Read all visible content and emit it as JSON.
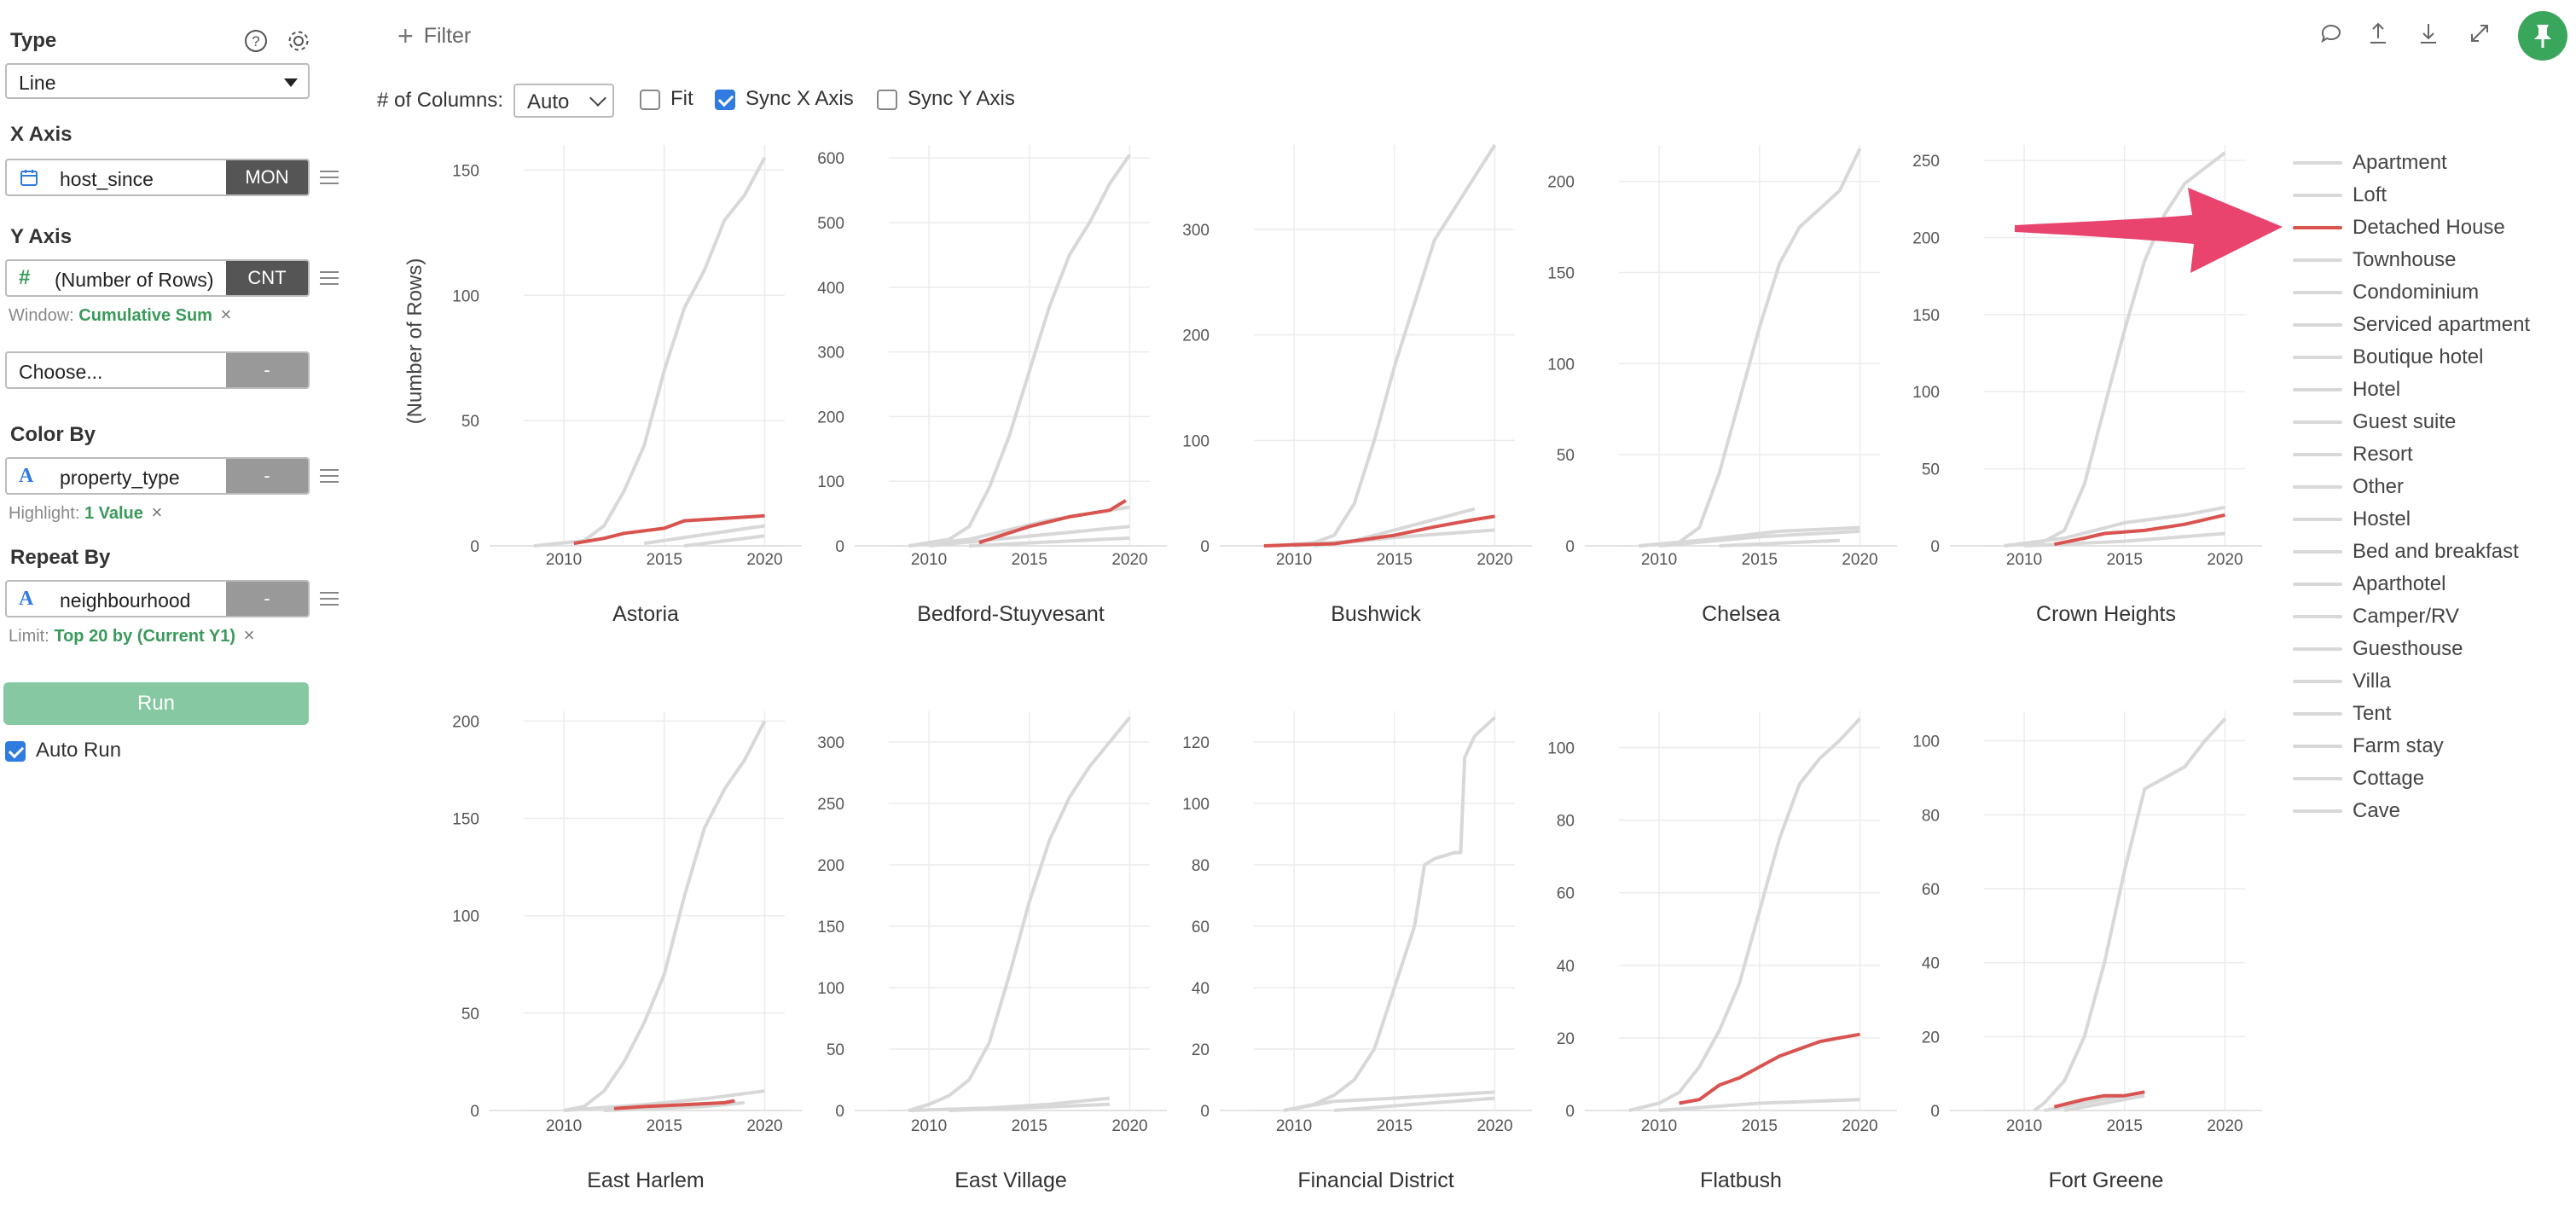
{
  "left_panel": {
    "type": {
      "title": "Type",
      "value": "Line"
    },
    "x_axis": {
      "title": "X Axis",
      "field": "host_since",
      "agg": "MON"
    },
    "y_axis": {
      "title": "Y Axis",
      "field": "(Number of Rows)",
      "agg": "CNT",
      "window_label": "Window:",
      "window_value": "Cumulative Sum"
    },
    "extra": {
      "placeholder": "Choose...",
      "agg": "-"
    },
    "color_by": {
      "title": "Color By",
      "field": "property_type",
      "agg": "-",
      "highlight_label": "Highlight:",
      "highlight_value": "1 Value"
    },
    "repeat_by": {
      "title": "Repeat By",
      "field": "neighbourhood",
      "agg": "-",
      "limit_label": "Limit:",
      "limit_value": "Top 20 by (Current Y1)"
    },
    "run_label": "Run",
    "auto_run_label": "Auto Run",
    "icons": [
      "help-icon",
      "gear-icon",
      "calendar-icon",
      "hash-icon",
      "text-type-icon",
      "menu-icon"
    ]
  },
  "toolbar": {
    "filter_label": "Filter",
    "columns_label": "# of Columns:",
    "columns_value": "Auto",
    "fit_label": "Fit",
    "fit_checked": false,
    "sync_x_label": "Sync X Axis",
    "sync_x_checked": true,
    "sync_y_label": "Sync Y Axis",
    "sync_y_checked": false,
    "icons": [
      "comment-icon",
      "upload-icon",
      "download-icon",
      "expand-icon",
      "pin-icon"
    ]
  },
  "colors": {
    "highlight": "#d9534f",
    "other": "#d8d8d8",
    "accent": "#3aa65c",
    "run": "#85c8a2",
    "arrow": "#e8446e"
  },
  "legend": {
    "items": [
      "Apartment",
      "Loft",
      "Detached House",
      "Townhouse",
      "Condominium",
      "Serviced apartment",
      "Boutique hotel",
      "Hotel",
      "Guest suite",
      "Resort",
      "Other",
      "Hostel",
      "Bed and breakfast",
      "Aparthotel",
      "Camper/RV",
      "Guesthouse",
      "Villa",
      "Tent",
      "Farm stay",
      "Cottage",
      "Cave"
    ],
    "highlighted": "Detached House"
  },
  "chart_data": {
    "type": "line",
    "y_axis_label": "(Number of Rows)",
    "x_ticks": [
      "2010",
      "2015",
      "2020"
    ],
    "panels": [
      {
        "title": "Astoria",
        "y_ticks": [
          0,
          50,
          100,
          150
        ],
        "ymax": 160,
        "apartment": [
          [
            2008.5,
            0
          ],
          [
            2011,
            2
          ],
          [
            2012,
            8
          ],
          [
            2013,
            22
          ],
          [
            2014,
            40
          ],
          [
            2015,
            70
          ],
          [
            2016,
            95
          ],
          [
            2017,
            110
          ],
          [
            2018,
            130
          ],
          [
            2019,
            140
          ],
          [
            2020,
            155
          ]
        ],
        "detached": [
          [
            2010.5,
            1
          ],
          [
            2012,
            3
          ],
          [
            2013,
            5
          ],
          [
            2015,
            7
          ],
          [
            2016,
            10
          ],
          [
            2018,
            11
          ],
          [
            2020,
            12
          ]
        ],
        "others": [
          [
            [
              2014,
              1
            ],
            [
              2020,
              8
            ]
          ],
          [
            [
              2016,
              0
            ],
            [
              2020,
              4
            ]
          ]
        ]
      },
      {
        "title": "Bedford-Stuyvesant",
        "y_ticks": [
          0,
          100,
          200,
          300,
          400,
          500,
          600
        ],
        "ymax": 620,
        "apartment": [
          [
            2009,
            0
          ],
          [
            2011,
            10
          ],
          [
            2012,
            30
          ],
          [
            2013,
            90
          ],
          [
            2014,
            170
          ],
          [
            2015,
            270
          ],
          [
            2016,
            370
          ],
          [
            2017,
            450
          ],
          [
            2018,
            500
          ],
          [
            2019,
            560
          ],
          [
            2020,
            605
          ]
        ],
        "detached": [
          [
            2012.5,
            5
          ],
          [
            2014,
            20
          ],
          [
            2015,
            30
          ],
          [
            2017,
            45
          ],
          [
            2019,
            55
          ],
          [
            2019.8,
            70
          ]
        ],
        "others": [
          [
            [
              2009,
              0
            ],
            [
              2012,
              10
            ],
            [
              2016,
              40
            ],
            [
              2020,
              60
            ]
          ],
          [
            [
              2010,
              0
            ],
            [
              2015,
              15
            ],
            [
              2020,
              30
            ]
          ],
          [
            [
              2012,
              0
            ],
            [
              2020,
              12
            ]
          ]
        ]
      },
      {
        "title": "Bushwick",
        "y_ticks": [
          0,
          100,
          200,
          300
        ],
        "ymax": 380,
        "apartment": [
          [
            2009,
            0
          ],
          [
            2011,
            3
          ],
          [
            2012,
            10
          ],
          [
            2013,
            40
          ],
          [
            2014,
            100
          ],
          [
            2015,
            170
          ],
          [
            2016,
            230
          ],
          [
            2017,
            290
          ],
          [
            2018,
            320
          ],
          [
            2019,
            350
          ],
          [
            2020,
            380
          ]
        ],
        "detached": [
          [
            2008.5,
            0
          ],
          [
            2010,
            1
          ],
          [
            2012,
            2
          ],
          [
            2015,
            10
          ],
          [
            2017,
            18
          ],
          [
            2019,
            25
          ],
          [
            2020,
            28
          ]
        ],
        "others": [
          [
            [
              2010,
              0
            ],
            [
              2013,
              5
            ],
            [
              2016,
              20
            ],
            [
              2019,
              35
            ]
          ],
          [
            [
              2011,
              0
            ],
            [
              2015,
              8
            ],
            [
              2020,
              15
            ]
          ]
        ]
      },
      {
        "title": "Chelsea",
        "y_ticks": [
          0,
          50,
          100,
          150,
          200
        ],
        "ymax": 220,
        "apartment": [
          [
            2009,
            0
          ],
          [
            2011,
            2
          ],
          [
            2012,
            10
          ],
          [
            2013,
            40
          ],
          [
            2014,
            80
          ],
          [
            2015,
            120
          ],
          [
            2016,
            155
          ],
          [
            2017,
            175
          ],
          [
            2018,
            185
          ],
          [
            2019,
            195
          ],
          [
            2020,
            218
          ]
        ],
        "detached": [],
        "others": [
          [
            [
              2009,
              0
            ],
            [
              2012,
              3
            ],
            [
              2016,
              8
            ],
            [
              2020,
              10
            ]
          ],
          [
            [
              2010,
              0
            ],
            [
              2015,
              5
            ],
            [
              2020,
              8
            ]
          ],
          [
            [
              2013,
              0
            ],
            [
              2019,
              3
            ]
          ]
        ]
      },
      {
        "title": "Crown Heights",
        "y_ticks": [
          0,
          50,
          100,
          150,
          200,
          250
        ],
        "ymax": 260,
        "apartment": [
          [
            2009,
            0
          ],
          [
            2011,
            3
          ],
          [
            2012,
            10
          ],
          [
            2013,
            40
          ],
          [
            2014,
            90
          ],
          [
            2015,
            140
          ],
          [
            2016,
            185
          ],
          [
            2017,
            215
          ],
          [
            2018,
            235
          ],
          [
            2019,
            245
          ],
          [
            2020,
            255
          ]
        ],
        "detached": [
          [
            2011.5,
            1
          ],
          [
            2013,
            5
          ],
          [
            2014,
            8
          ],
          [
            2016,
            10
          ],
          [
            2018,
            14
          ],
          [
            2020,
            20
          ]
        ],
        "others": [
          [
            [
              2009,
              0
            ],
            [
              2012,
              5
            ],
            [
              2015,
              15
            ],
            [
              2018,
              20
            ],
            [
              2020,
              25
            ]
          ],
          [
            [
              2010,
              0
            ],
            [
              2015,
              3
            ],
            [
              2020,
              8
            ]
          ]
        ]
      },
      {
        "title": "East Harlem",
        "y_ticks": [
          0,
          50,
          100,
          150,
          200
        ],
        "ymax": 205,
        "apartment": [
          [
            2010,
            0
          ],
          [
            2011,
            2
          ],
          [
            2012,
            10
          ],
          [
            2013,
            25
          ],
          [
            2014,
            45
          ],
          [
            2015,
            70
          ],
          [
            2016,
            110
          ],
          [
            2017,
            145
          ],
          [
            2018,
            165
          ],
          [
            2019,
            180
          ],
          [
            2020,
            200
          ]
        ],
        "detached": [
          [
            2012.5,
            1
          ],
          [
            2014,
            2
          ],
          [
            2016,
            3
          ],
          [
            2018,
            4
          ],
          [
            2018.5,
            5
          ]
        ],
        "others": [
          [
            [
              2010,
              0
            ],
            [
              2014,
              3
            ],
            [
              2017,
              6
            ],
            [
              2020,
              10
            ]
          ],
          [
            [
              2012,
              0
            ],
            [
              2017,
              2
            ],
            [
              2019,
              4
            ]
          ]
        ]
      },
      {
        "title": "East Village",
        "y_ticks": [
          0,
          50,
          100,
          150,
          200,
          250,
          300
        ],
        "ymax": 325,
        "apartment": [
          [
            2009,
            0
          ],
          [
            2010,
            5
          ],
          [
            2011,
            12
          ],
          [
            2012,
            25
          ],
          [
            2013,
            55
          ],
          [
            2014,
            110
          ],
          [
            2015,
            170
          ],
          [
            2016,
            220
          ],
          [
            2017,
            255
          ],
          [
            2018,
            280
          ],
          [
            2019,
            300
          ],
          [
            2020,
            320
          ]
        ],
        "detached": [],
        "others": [
          [
            [
              2009,
              0
            ],
            [
              2013,
              2
            ],
            [
              2016,
              5
            ],
            [
              2019,
              10
            ]
          ],
          [
            [
              2011,
              0
            ],
            [
              2016,
              3
            ],
            [
              2019,
              5
            ]
          ]
        ]
      },
      {
        "title": "Financial District",
        "y_ticks": [
          0,
          20,
          40,
          60,
          80,
          100,
          120
        ],
        "ymax": 130,
        "apartment": [
          [
            2009.5,
            0
          ],
          [
            2011,
            2
          ],
          [
            2012,
            5
          ],
          [
            2013,
            10
          ],
          [
            2014,
            20
          ],
          [
            2015,
            40
          ],
          [
            2016,
            60
          ],
          [
            2016.5,
            80
          ],
          [
            2017,
            82
          ],
          [
            2018,
            84
          ],
          [
            2018.3,
            84
          ],
          [
            2018.5,
            115
          ],
          [
            2019,
            122
          ],
          [
            2020,
            128
          ]
        ],
        "detached": [],
        "others": [
          [
            [
              2009.5,
              0
            ],
            [
              2012,
              3
            ],
            [
              2015,
              4
            ],
            [
              2020,
              6
            ]
          ],
          [
            [
              2012,
              0
            ],
            [
              2016,
              2
            ],
            [
              2020,
              4
            ]
          ]
        ]
      },
      {
        "title": "Flatbush",
        "y_ticks": [
          0,
          20,
          40,
          60,
          80,
          100
        ],
        "ymax": 110,
        "apartment": [
          [
            2008.5,
            0
          ],
          [
            2010,
            2
          ],
          [
            2011,
            5
          ],
          [
            2012,
            12
          ],
          [
            2013,
            22
          ],
          [
            2014,
            35
          ],
          [
            2015,
            55
          ],
          [
            2016,
            75
          ],
          [
            2017,
            90
          ],
          [
            2018,
            97
          ],
          [
            2019,
            102
          ],
          [
            2020,
            108
          ]
        ],
        "detached": [
          [
            2011,
            2
          ],
          [
            2012,
            3
          ],
          [
            2013,
            7
          ],
          [
            2014,
            9
          ],
          [
            2015,
            12
          ],
          [
            2016,
            15
          ],
          [
            2017,
            17
          ],
          [
            2018,
            19
          ],
          [
            2019,
            20
          ],
          [
            2020,
            21
          ]
        ],
        "others": [
          [
            [
              2010,
              0
            ],
            [
              2015,
              2
            ],
            [
              2020,
              3
            ]
          ]
        ]
      },
      {
        "title": "Fort Greene",
        "y_ticks": [
          0,
          20,
          40,
          60,
          80,
          100
        ],
        "ymax": 108,
        "apartment": [
          [
            2010.5,
            0
          ],
          [
            2011,
            2
          ],
          [
            2012,
            8
          ],
          [
            2013,
            20
          ],
          [
            2014,
            40
          ],
          [
            2015,
            65
          ],
          [
            2016,
            87
          ],
          [
            2017,
            90
          ],
          [
            2018,
            93
          ],
          [
            2019,
            100
          ],
          [
            2020,
            106
          ]
        ],
        "detached": [
          [
            2011.5,
            1
          ],
          [
            2013,
            3
          ],
          [
            2014,
            4
          ],
          [
            2015,
            4
          ],
          [
            2016,
            5
          ]
        ],
        "others": [
          [
            [
              2011,
              0
            ],
            [
              2013,
              2
            ],
            [
              2016,
              5
            ]
          ],
          [
            [
              2012,
              0
            ],
            [
              2015,
              3
            ],
            [
              2016,
              4
            ]
          ]
        ]
      }
    ]
  }
}
